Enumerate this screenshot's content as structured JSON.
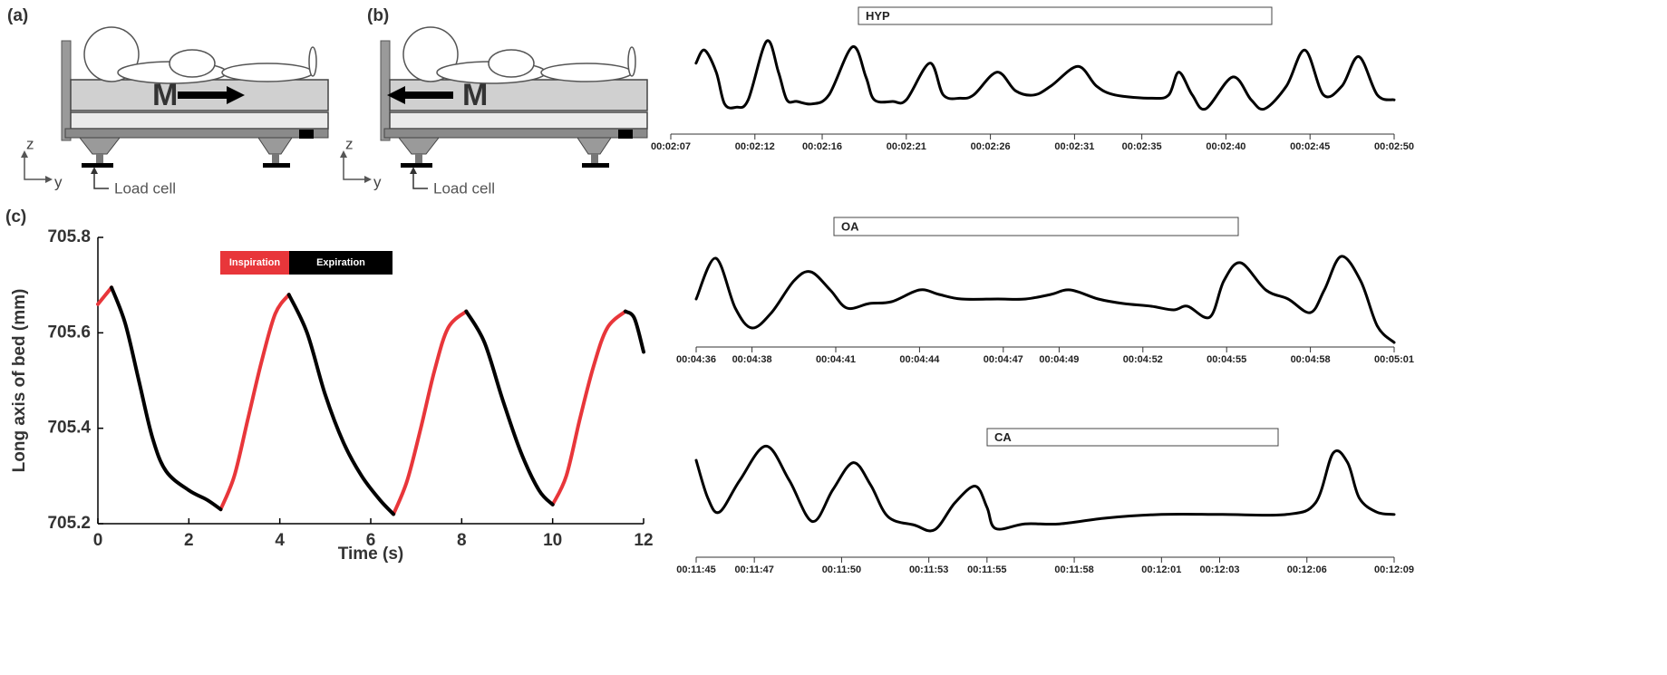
{
  "panels": [
    {
      "label": "(a)",
      "mass": "M",
      "z_axis": "z",
      "y_axis": "y",
      "sensor": "Load cell"
    },
    {
      "label": "(b)",
      "mass": "M",
      "z_axis": "z",
      "y_axis": "y",
      "sensor": "Load cell"
    }
  ],
  "chart_data": [
    {
      "type": "line",
      "label": "(c)",
      "xlabel": "Time (s)",
      "ylabel": "Long axis of bed (mm)",
      "x": [
        0,
        0.3,
        0.6,
        0.9,
        1.2,
        1.5,
        2.0,
        2.4,
        2.7,
        3.0,
        3.3,
        3.6,
        3.9,
        4.2,
        4.6,
        5.0,
        5.4,
        5.8,
        6.2,
        6.5,
        6.8,
        7.1,
        7.4,
        7.7,
        8.1,
        8.5,
        8.9,
        9.3,
        9.7,
        10.0,
        10.3,
        10.6,
        10.9,
        11.2,
        11.6,
        11.8,
        12.0
      ],
      "series": [
        {
          "name": "Inspiration",
          "color": "#e8363a",
          "values": [
            705.66,
            705.695,
            null,
            null,
            null,
            null,
            null,
            null,
            705.23,
            705.3,
            705.42,
            705.54,
            705.64,
            705.68,
            null,
            null,
            null,
            null,
            null,
            705.22,
            705.29,
            705.4,
            705.52,
            705.61,
            705.645,
            null,
            null,
            null,
            null,
            705.24,
            705.3,
            705.42,
            705.53,
            705.61,
            705.645,
            null,
            null
          ]
        },
        {
          "name": "Expiration",
          "color": "#000000",
          "values": [
            null,
            705.695,
            705.62,
            705.5,
            705.38,
            705.31,
            705.27,
            705.25,
            705.23,
            null,
            null,
            null,
            null,
            705.68,
            705.6,
            705.47,
            705.37,
            705.3,
            705.25,
            705.22,
            null,
            null,
            null,
            null,
            705.645,
            705.58,
            705.46,
            705.35,
            705.27,
            705.24,
            null,
            null,
            null,
            null,
            705.645,
            705.63,
            705.56
          ]
        }
      ],
      "xlim": [
        0,
        12
      ],
      "ylim": [
        705.2,
        705.8
      ],
      "xticks": [
        0,
        2,
        4,
        6,
        8,
        10,
        12
      ],
      "yticks": [
        705.2,
        705.4,
        705.6,
        705.8
      ]
    },
    {
      "type": "line",
      "annotation": "HYP",
      "color": "#000000",
      "x": [
        128.5,
        129,
        129.7,
        130.2,
        130.9,
        131.6,
        132.7,
        133.4,
        133.9,
        134.5,
        135.4,
        136.4,
        137.8,
        138.6,
        139.1,
        140.2,
        141,
        142.4,
        143.2,
        144.2,
        145,
        146.4,
        147.5,
        148.6,
        149.6,
        151.2,
        152.3,
        153.4,
        155.6,
        156.6,
        157.2,
        158,
        158.8,
        160.4,
        161.5,
        162.3,
        163.6,
        164.7,
        165.8,
        166.9,
        167.9,
        169,
        170
      ],
      "values": [
        0.67,
        0.83,
        0.56,
        0.17,
        0.13,
        0.22,
        0.94,
        0.56,
        0.22,
        0.2,
        0.17,
        0.28,
        0.87,
        0.5,
        0.22,
        0.2,
        0.22,
        0.67,
        0.28,
        0.24,
        0.28,
        0.56,
        0.33,
        0.28,
        0.39,
        0.63,
        0.39,
        0.28,
        0.24,
        0.28,
        0.56,
        0.28,
        0.11,
        0.5,
        0.22,
        0.11,
        0.39,
        0.83,
        0.28,
        0.39,
        0.75,
        0.28,
        0.22
      ],
      "xlim": [
        127,
        170
      ],
      "ylim": [
        0,
        1
      ],
      "xticks": [
        {
          "value": 127,
          "label": "00:02:07"
        },
        {
          "value": 132,
          "label": "00:02:12"
        },
        {
          "value": 136,
          "label": "00:02:16"
        },
        {
          "value": 141,
          "label": "00:02:21"
        },
        {
          "value": 146,
          "label": "00:02:26"
        },
        {
          "value": 151,
          "label": "00:02:31"
        },
        {
          "value": 155,
          "label": "00:02:35"
        },
        {
          "value": 160,
          "label": "00:02:40"
        },
        {
          "value": 165,
          "label": "00:02:45"
        },
        {
          "value": 170,
          "label": "00:02:50"
        }
      ]
    },
    {
      "type": "line",
      "annotation": "OA",
      "color": "#000000",
      "x": [
        276,
        276.7,
        277.4,
        278,
        278.7,
        279.5,
        280.1,
        280.8,
        281.4,
        282.2,
        283,
        284,
        284.7,
        285.5,
        286.8,
        287.8,
        288.7,
        289.4,
        290.4,
        291.3,
        292.3,
        293.1,
        293.6,
        294.4,
        294.9,
        295.5,
        296.4,
        297.2,
        298,
        298.5,
        299.1,
        299.8,
        300.4,
        301
      ],
      "values": [
        0.5,
        0.95,
        0.4,
        0.18,
        0.35,
        0.7,
        0.8,
        0.6,
        0.4,
        0.45,
        0.47,
        0.6,
        0.55,
        0.5,
        0.5,
        0.5,
        0.55,
        0.6,
        0.5,
        0.45,
        0.42,
        0.38,
        0.42,
        0.3,
        0.7,
        0.9,
        0.6,
        0.5,
        0.35,
        0.6,
        0.97,
        0.7,
        0.2,
        0.02
      ],
      "xlim": [
        276,
        301
      ],
      "ylim": [
        0,
        1
      ],
      "xticks": [
        {
          "value": 276,
          "label": "00:04:36"
        },
        {
          "value": 278,
          "label": "00:04:38"
        },
        {
          "value": 281,
          "label": "00:04:41"
        },
        {
          "value": 284,
          "label": "00:04:44"
        },
        {
          "value": 287,
          "label": "00:04:47"
        },
        {
          "value": 289,
          "label": "00:04:49"
        },
        {
          "value": 292,
          "label": "00:04:52"
        },
        {
          "value": 295,
          "label": "00:04:55"
        },
        {
          "value": 298,
          "label": "00:04:58"
        },
        {
          "value": 301,
          "label": "00:05:01"
        }
      ]
    },
    {
      "type": "line",
      "annotation": "CA",
      "color": "#000000",
      "x": [
        705,
        705.4,
        705.8,
        706.5,
        707.4,
        708.2,
        709,
        709.7,
        710.4,
        711,
        711.6,
        712.5,
        713.2,
        713.9,
        714.6,
        715,
        715.3,
        716.3,
        717.5,
        719.1,
        721,
        723.1,
        725.3,
        726.3,
        726.9,
        727.4,
        727.8,
        728.4,
        729
      ],
      "values": [
        0.8,
        0.48,
        0.36,
        0.63,
        0.92,
        0.63,
        0.28,
        0.55,
        0.78,
        0.59,
        0.32,
        0.25,
        0.21,
        0.44,
        0.58,
        0.4,
        0.22,
        0.26,
        0.26,
        0.31,
        0.34,
        0.34,
        0.34,
        0.44,
        0.86,
        0.78,
        0.48,
        0.36,
        0.34
      ],
      "xlim": [
        705,
        729
      ],
      "ylim": [
        0,
        1
      ],
      "xticks": [
        {
          "value": 705,
          "label": "00:11:45"
        },
        {
          "value": 707,
          "label": "00:11:47"
        },
        {
          "value": 710,
          "label": "00:11:50"
        },
        {
          "value": 713,
          "label": "00:11:53"
        },
        {
          "value": 715,
          "label": "00:11:55"
        },
        {
          "value": 718,
          "label": "00:11:58"
        },
        {
          "value": 721,
          "label": "00:12:01"
        },
        {
          "value": 723,
          "label": "00:12:03"
        },
        {
          "value": 726,
          "label": "00:12:06"
        },
        {
          "value": 729,
          "label": "00:12:09"
        }
      ]
    }
  ]
}
